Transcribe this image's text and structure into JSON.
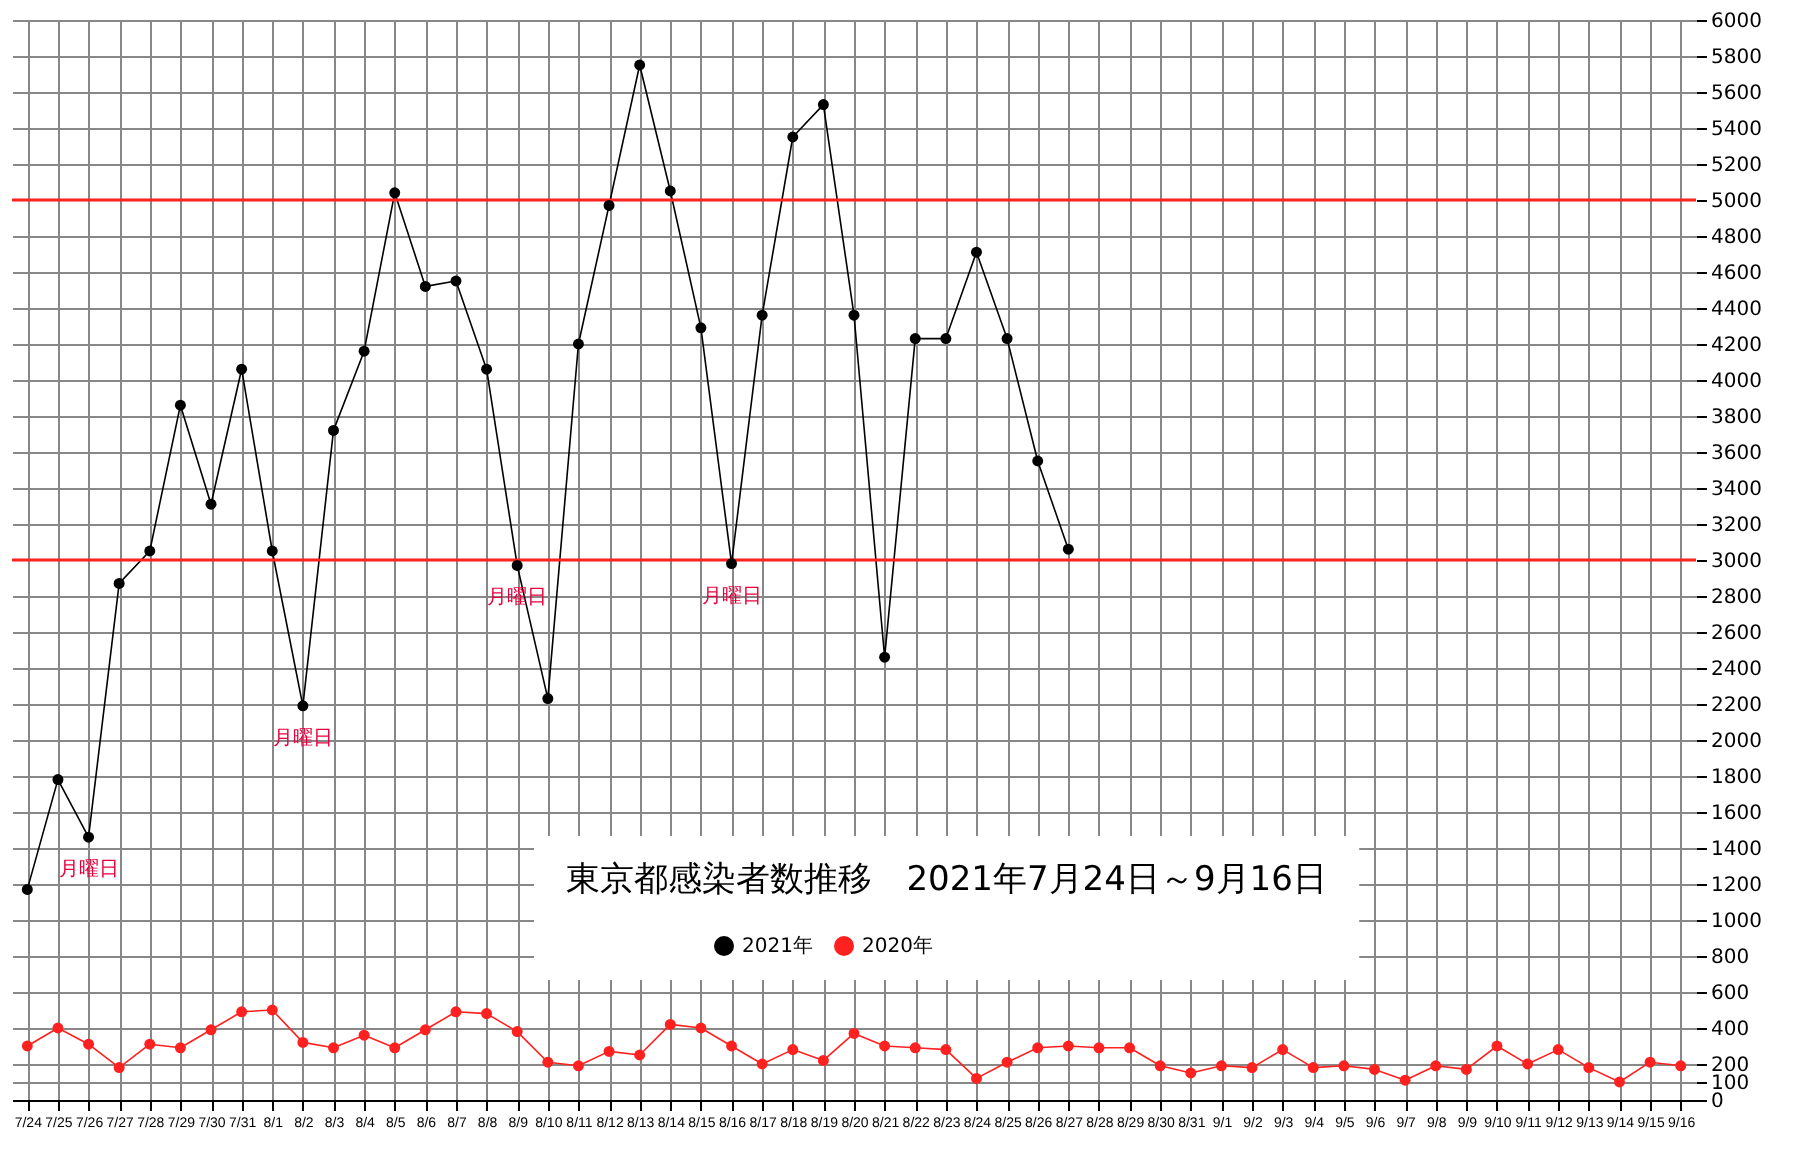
{
  "chart_data": {
    "type": "line",
    "title": "東京都感染者数推移　2021年7月24日～9月16日",
    "categories": [
      "7/24",
      "7/25",
      "7/26",
      "7/27",
      "7/28",
      "7/29",
      "7/30",
      "7/31",
      "8/1",
      "8/2",
      "8/3",
      "8/4",
      "8/5",
      "8/6",
      "8/7",
      "8/8",
      "8/9",
      "8/10",
      "8/11",
      "8/12",
      "8/13",
      "8/14",
      "8/15",
      "8/16",
      "8/17",
      "8/18",
      "8/19",
      "8/20",
      "8/21",
      "8/22",
      "8/23",
      "8/24",
      "8/25",
      "8/26",
      "8/27",
      "8/28",
      "8/29",
      "8/30",
      "8/31",
      "9/1",
      "9/2",
      "9/3",
      "9/4",
      "9/5",
      "9/6",
      "9/7",
      "9/8",
      "9/9",
      "9/10",
      "9/11",
      "9/12",
      "9/13",
      "9/14",
      "9/15",
      "9/16"
    ],
    "series": [
      {
        "name": "2021年",
        "color": "#000000",
        "values": [
          1170,
          1780,
          1460,
          2870,
          3050,
          3860,
          3310,
          4060,
          3050,
          2190,
          3720,
          4160,
          5040,
          4520,
          4550,
          4060,
          2970,
          2230,
          4200,
          4970,
          5750,
          5050,
          4290,
          2980,
          4360,
          5350,
          5530,
          4360,
          2460,
          4230,
          4230,
          4710,
          4230,
          3550,
          3060,
          null,
          null,
          null,
          null,
          null,
          null,
          null,
          null,
          null,
          null,
          null,
          null,
          null,
          null,
          null,
          null,
          null,
          null,
          null,
          null
        ]
      },
      {
        "name": "2020年",
        "color": "#ff2020",
        "values": [
          300,
          400,
          310,
          180,
          310,
          290,
          390,
          490,
          500,
          320,
          290,
          360,
          290,
          390,
          490,
          480,
          380,
          210,
          190,
          270,
          250,
          420,
          400,
          300,
          200,
          280,
          220,
          370,
          300,
          290,
          280,
          120,
          210,
          290,
          300,
          290,
          290,
          190,
          150,
          190,
          180,
          280,
          180,
          190,
          170,
          110,
          190,
          170,
          300,
          200,
          280,
          180,
          100,
          210,
          190
        ]
      }
    ],
    "ylim": [
      0,
      6000
    ],
    "yticks": [
      0,
      100,
      200,
      400,
      600,
      800,
      1000,
      1200,
      1400,
      1600,
      1800,
      2000,
      2200,
      2400,
      2600,
      2800,
      3000,
      3200,
      3400,
      3600,
      3800,
      4000,
      4200,
      4400,
      4600,
      4800,
      5000,
      5200,
      5400,
      5600,
      5800,
      6000
    ],
    "ref_lines": [
      {
        "axis": "y",
        "value": 3000,
        "color": "#ff2020"
      },
      {
        "axis": "y",
        "value": 5000,
        "color": "#ff2020"
      }
    ],
    "annotations": [
      {
        "text": "月曜日",
        "x": "7/26",
        "y": 1460
      },
      {
        "text": "月曜日",
        "x": "8/2",
        "y": 2190
      },
      {
        "text": "月曜日",
        "x": "8/9",
        "y": 2970
      },
      {
        "text": "月曜日",
        "x": "8/16",
        "y": 2980
      }
    ],
    "grid": true,
    "legend": "bottom",
    "marker": "circle",
    "line_style": "solid"
  }
}
